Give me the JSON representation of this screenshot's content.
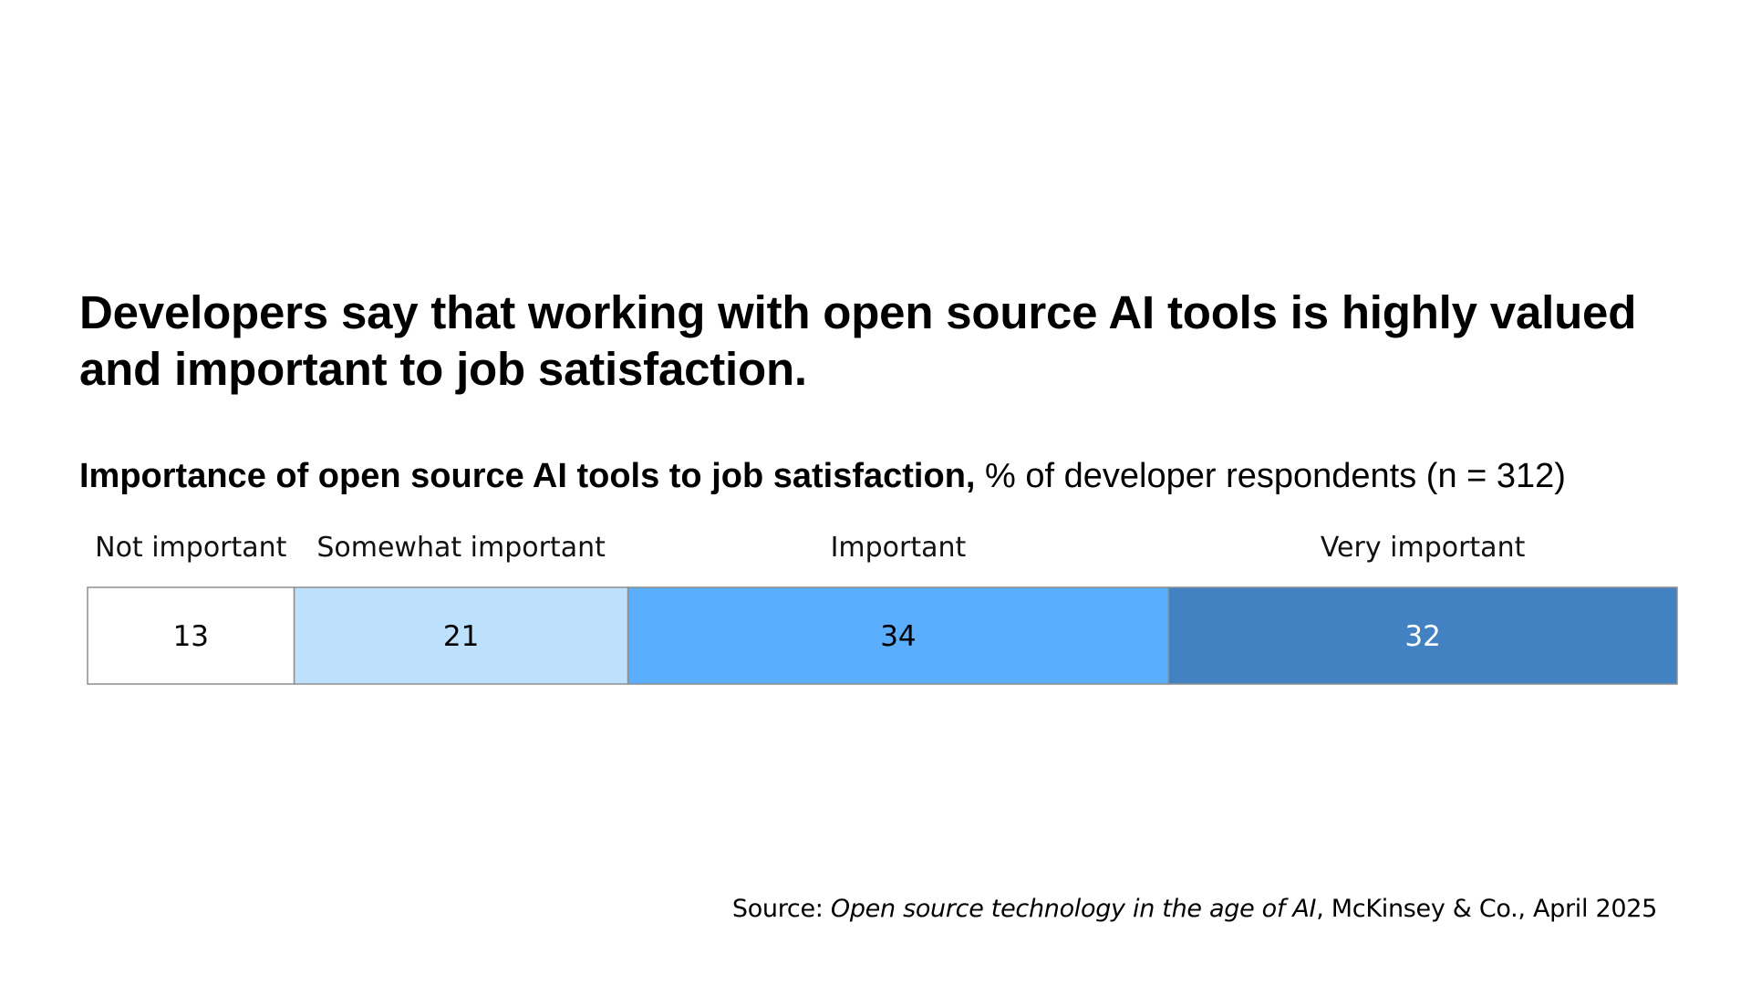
{
  "headline": "Developers say that working with open source AI tools is highly valued and important to job satisfaction.",
  "subtitle": {
    "bold": "Importance of open source AI tools to job satisfaction,",
    "normal": " % of developer respondents (n = 312)"
  },
  "chart_data": {
    "type": "bar",
    "orientation": "horizontal-stacked-100",
    "title": "Importance of open source AI tools to job satisfaction",
    "subtitle": "% of developer respondents (n = 312)",
    "categories": [
      "Not important",
      "Somewhat important",
      "Important",
      "Very important"
    ],
    "values": [
      13,
      21,
      34,
      32
    ],
    "colors": [
      "#ffffff",
      "#bde0fc",
      "#5aaefb",
      "#4282c2"
    ],
    "label_colors": [
      "#000000",
      "#000000",
      "#000000",
      "#ffffff"
    ],
    "border_color": "#8e8e8e",
    "total": 100
  },
  "source": {
    "prefix": "Source: ",
    "title": "Open source technology in the age of AI",
    "suffix": ", McKinsey & Co., April 2025"
  }
}
